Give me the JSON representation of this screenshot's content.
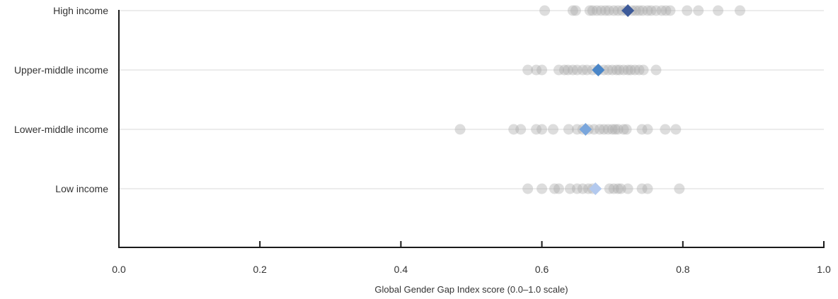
{
  "chart_data": {
    "type": "scatter",
    "title": "",
    "xlabel": "Global Gender Gap Index score (0.0–1.0 scale)",
    "ylabel": "",
    "xlim": [
      0.0,
      1.0
    ],
    "x_ticks": [
      "0.0",
      "0.2",
      "0.4",
      "0.6",
      "0.8",
      "1.0"
    ],
    "grid": true,
    "categories": [
      "High income",
      "Upper-middle income",
      "Lower-middle income",
      "Low income"
    ],
    "series": [
      {
        "category": "High income",
        "points": [
          0.604,
          0.644,
          0.648,
          0.668,
          0.672,
          0.678,
          0.684,
          0.69,
          0.695,
          0.702,
          0.708,
          0.714,
          0.72,
          0.728,
          0.733,
          0.738,
          0.743,
          0.75,
          0.755,
          0.762,
          0.77,
          0.776,
          0.782,
          0.806,
          0.822,
          0.85,
          0.881
        ],
        "average": 0.722,
        "average_color": "#3d5a99"
      },
      {
        "category": "Upper-middle income",
        "points": [
          0.58,
          0.592,
          0.6,
          0.624,
          0.632,
          0.637,
          0.644,
          0.65,
          0.658,
          0.664,
          0.672,
          0.68,
          0.688,
          0.694,
          0.7,
          0.706,
          0.71,
          0.716,
          0.722,
          0.726,
          0.732,
          0.738,
          0.744,
          0.762
        ],
        "average": 0.68,
        "average_color": "#4a86c8"
      },
      {
        "category": "Lower-middle income",
        "points": [
          0.484,
          0.56,
          0.57,
          0.592,
          0.6,
          0.616,
          0.638,
          0.65,
          0.658,
          0.666,
          0.674,
          0.682,
          0.688,
          0.694,
          0.7,
          0.704,
          0.708,
          0.716,
          0.72,
          0.742,
          0.75,
          0.775,
          0.79
        ],
        "average": 0.662,
        "average_color": "#7aa6dc"
      },
      {
        "category": "Low income",
        "points": [
          0.58,
          0.6,
          0.618,
          0.624,
          0.64,
          0.65,
          0.658,
          0.666,
          0.672,
          0.696,
          0.702,
          0.708,
          0.712,
          0.722,
          0.742,
          0.75,
          0.795
        ],
        "average": 0.676,
        "average_color": "#b3c9ee"
      }
    ],
    "point_color": "#aaaaaa",
    "point_opacity": 0.4,
    "gridline_color": "#d9d9d9",
    "axis_color": "#1a1a1a"
  }
}
